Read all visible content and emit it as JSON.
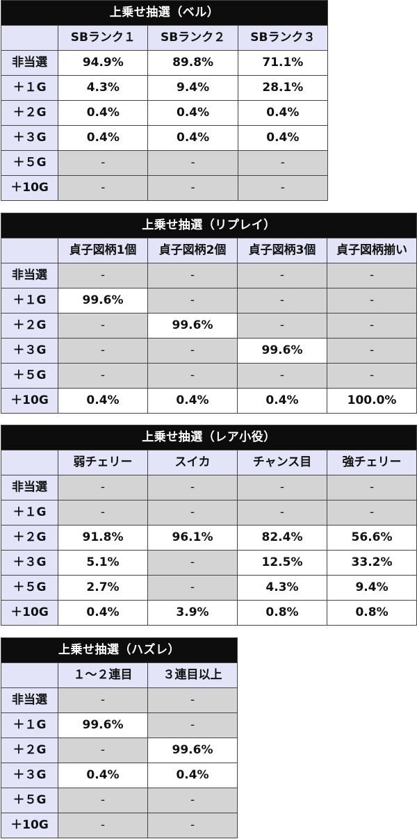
{
  "tables": [
    {
      "title": "上乗せ抽選（ベル）",
      "headers": [
        "SBランク１",
        "SBランク２",
        "SBランク３"
      ],
      "rows": [
        {
          "label": "非当選",
          "cells": [
            "94.9%",
            "89.8%",
            "71.1%"
          ]
        },
        {
          "label": "＋１G",
          "cells": [
            "4.3%",
            "9.4%",
            "28.1%"
          ]
        },
        {
          "label": "＋２G",
          "cells": [
            "0.4%",
            "0.4%",
            "0.4%"
          ]
        },
        {
          "label": "＋３G",
          "cells": [
            "0.4%",
            "0.4%",
            "0.4%"
          ]
        },
        {
          "label": "＋５G",
          "cells": [
            "-",
            "-",
            "-"
          ]
        },
        {
          "label": "＋10G",
          "cells": [
            "-",
            "-",
            "-"
          ]
        }
      ]
    },
    {
      "title": "上乗せ抽選（リプレイ）",
      "headers": [
        "貞子図柄1個",
        "貞子図柄2個",
        "貞子図柄3個",
        "貞子図柄揃い"
      ],
      "rows": [
        {
          "label": "非当選",
          "cells": [
            "-",
            "-",
            "-",
            "-"
          ]
        },
        {
          "label": "＋１G",
          "cells": [
            "99.6%",
            "-",
            "-",
            "-"
          ]
        },
        {
          "label": "＋２G",
          "cells": [
            "-",
            "99.6%",
            "-",
            "-"
          ]
        },
        {
          "label": "＋３G",
          "cells": [
            "-",
            "-",
            "99.6%",
            "-"
          ]
        },
        {
          "label": "＋５G",
          "cells": [
            "-",
            "-",
            "-",
            "-"
          ]
        },
        {
          "label": "＋10G",
          "cells": [
            "0.4%",
            "0.4%",
            "0.4%",
            "100.0%"
          ]
        }
      ]
    },
    {
      "title": "上乗せ抽選（レア小役）",
      "headers": [
        "弱チェリー",
        "スイカ",
        "チャンス目",
        "強チェリー"
      ],
      "rows": [
        {
          "label": "非当選",
          "cells": [
            "-",
            "-",
            "-",
            "-"
          ]
        },
        {
          "label": "＋１G",
          "cells": [
            "-",
            "-",
            "-",
            "-"
          ]
        },
        {
          "label": "＋２G",
          "cells": [
            "91.8%",
            "96.1%",
            "82.4%",
            "56.6%"
          ]
        },
        {
          "label": "＋３G",
          "cells": [
            "5.1%",
            "-",
            "12.5%",
            "33.2%"
          ]
        },
        {
          "label": "＋５G",
          "cells": [
            "2.7%",
            "-",
            "4.3%",
            "9.4%"
          ]
        },
        {
          "label": "＋10G",
          "cells": [
            "0.4%",
            "3.9%",
            "0.8%",
            "0.8%"
          ]
        }
      ]
    },
    {
      "title": "上乗せ抽選（ハズレ）",
      "headers": [
        "１～２連目",
        "３連目以上"
      ],
      "rows": [
        {
          "label": "非当選",
          "cells": [
            "-",
            "-"
          ]
        },
        {
          "label": "＋１G",
          "cells": [
            "99.6%",
            "-"
          ]
        },
        {
          "label": "＋２G",
          "cells": [
            "-",
            "99.6%"
          ]
        },
        {
          "label": "＋３G",
          "cells": [
            "0.4%",
            "0.4%"
          ]
        },
        {
          "label": "＋５G",
          "cells": [
            "-",
            "-"
          ]
        },
        {
          "label": "＋10G",
          "cells": [
            "-",
            "-"
          ]
        }
      ]
    }
  ]
}
